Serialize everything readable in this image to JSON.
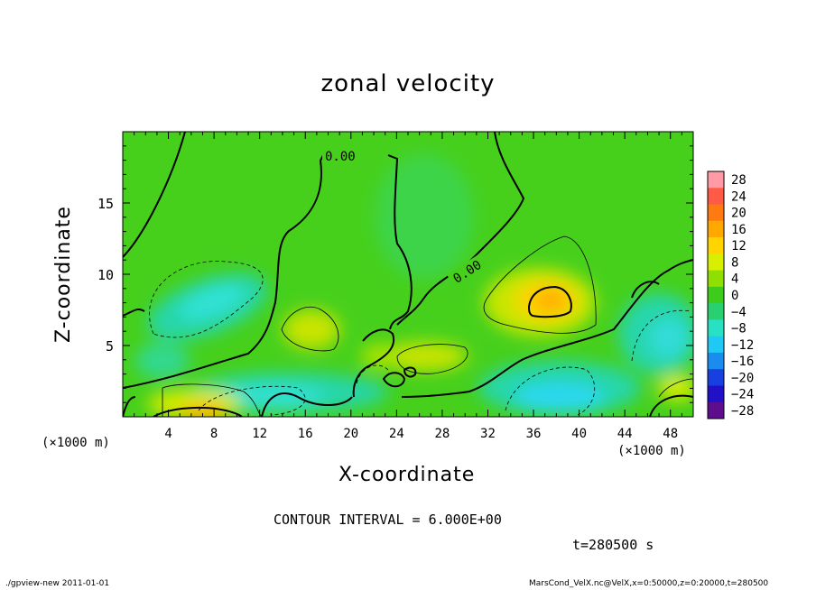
{
  "chart_data": {
    "type": "heatmap",
    "title": "zonal velocity",
    "xlabel": "X-coordinate",
    "ylabel": "Z-coordinate",
    "x_unit_label": "(×1000 m)",
    "y_unit_label": "(×1000 m)",
    "xlim": [
      0,
      50
    ],
    "ylim": [
      0,
      20
    ],
    "x_ticks": [
      4,
      8,
      12,
      16,
      20,
      24,
      28,
      32,
      36,
      40,
      44,
      48
    ],
    "y_ticks": [
      5,
      10,
      15
    ],
    "contour_labels": [
      "0.00",
      "0.00"
    ],
    "colorbar": {
      "levels": [
        "28",
        "24",
        "20",
        "16",
        "12",
        "8",
        "4",
        "0",
        "−4",
        "−8",
        "−12",
        "−16",
        "−20",
        "−24",
        "−28"
      ],
      "colors": [
        "#ff9aa6",
        "#ff5a46",
        "#ff7a10",
        "#ffa800",
        "#ffd400",
        "#d8f000",
        "#8fe000",
        "#3ecc1c",
        "#28d070",
        "#28e0c4",
        "#20c8f4",
        "#1a8cf0",
        "#1840e0",
        "#2010c8",
        "#5e0e8c"
      ]
    },
    "features": [
      {
        "label": "positive maximum",
        "x": 38,
        "z": 7.9,
        "value": 12
      },
      {
        "label": "positive maximum",
        "x": 8,
        "z": 0.5,
        "value": 12
      },
      {
        "label": "negative minimum",
        "x": 7,
        "z": 8.5,
        "value": -8
      },
      {
        "label": "negative minimum",
        "x": 37,
        "z": 1.5,
        "value": -8
      },
      {
        "label": "negative minimum",
        "x": 46,
        "z": 6,
        "value": -8
      }
    ]
  },
  "annotations": {
    "contour_interval": "CONTOUR INTERVAL = 6.000E+00",
    "time": "t=280500 s"
  },
  "footer": {
    "left": "./gpview-new   2011-01-01",
    "right": "MarsCond_VelX.nc@VelX,x=0:50000,z=0:20000,t=280500"
  }
}
